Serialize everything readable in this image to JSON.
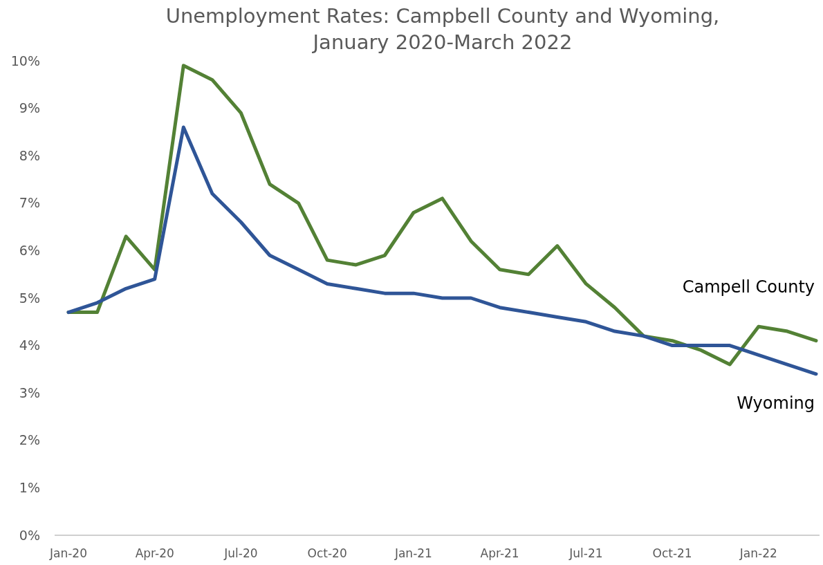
{
  "chart_data": {
    "type": "line",
    "title": "Unemployment Rates: Campbell County and Wyoming,\nJanuary 2020-March 2022",
    "categories": [
      "Jan-20",
      null,
      null,
      "Apr-20",
      null,
      null,
      "Jul-20",
      null,
      null,
      "Oct-20",
      null,
      null,
      "Jan-21",
      null,
      null,
      "Apr-21",
      null,
      null,
      "Jul-21",
      null,
      null,
      "Oct-21",
      null,
      null,
      "Jan-22",
      null,
      null
    ],
    "series": [
      {
        "name": "Campell County",
        "color": "#538135",
        "values": [
          4.7,
          4.7,
          6.3,
          5.6,
          9.9,
          9.6,
          8.9,
          7.4,
          7.0,
          5.8,
          5.7,
          5.9,
          6.8,
          7.1,
          6.2,
          5.6,
          5.5,
          6.1,
          5.3,
          4.8,
          4.2,
          4.1,
          3.9,
          3.6,
          4.4,
          4.3,
          4.1
        ]
      },
      {
        "name": "Wyoming",
        "color": "#2f5597",
        "values": [
          4.7,
          4.9,
          5.2,
          5.4,
          8.6,
          7.2,
          6.6,
          5.9,
          5.6,
          5.3,
          5.2,
          5.1,
          5.1,
          5.0,
          5.0,
          4.8,
          4.7,
          4.6,
          4.5,
          4.3,
          4.2,
          4.0,
          4.0,
          4.0,
          3.8,
          3.6,
          3.4
        ]
      }
    ],
    "ylim": [
      0,
      10
    ],
    "yticks": [
      {
        "value": 0,
        "label": "0%"
      },
      {
        "value": 1,
        "label": "1%"
      },
      {
        "value": 2,
        "label": "2%"
      },
      {
        "value": 3,
        "label": "3%"
      },
      {
        "value": 4,
        "label": "4%"
      },
      {
        "value": 5,
        "label": "5%"
      },
      {
        "value": 6,
        "label": "6%"
      },
      {
        "value": 7,
        "label": "7%"
      },
      {
        "value": 8,
        "label": "8%"
      },
      {
        "value": 9,
        "label": "9%"
      },
      {
        "value": 10,
        "label": "10%"
      }
    ],
    "grid": false,
    "marker": "none",
    "line_style": "solid"
  }
}
